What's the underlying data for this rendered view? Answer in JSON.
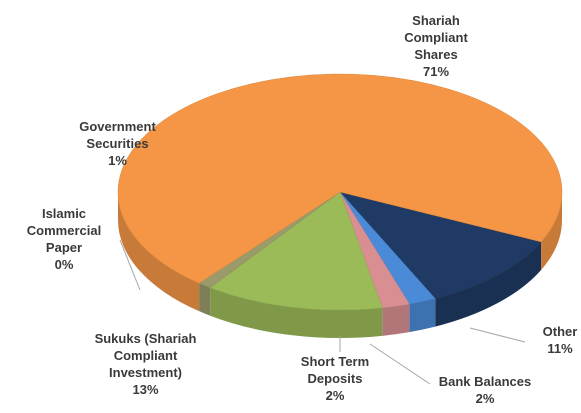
{
  "chart_data": {
    "type": "pie3d",
    "categories": [
      "Other",
      "Bank Balances",
      "Short Term Deposits",
      "Sukuks (Shariah Compliant Investment)",
      "Islamic Commercial Paper",
      "Government Securities",
      "Shariah Compliant Shares"
    ],
    "values": [
      11,
      2,
      2,
      13,
      0,
      1,
      71
    ],
    "value_labels": [
      "11%",
      "2%",
      "2%",
      "13%",
      "0%",
      "1%",
      "71%"
    ],
    "colors": [
      "#1f3a64",
      "#4a8ad6",
      "#d98f92",
      "#9bbb59",
      "#8a8a5a",
      "#9a9a6a",
      "#f49645"
    ]
  }
}
